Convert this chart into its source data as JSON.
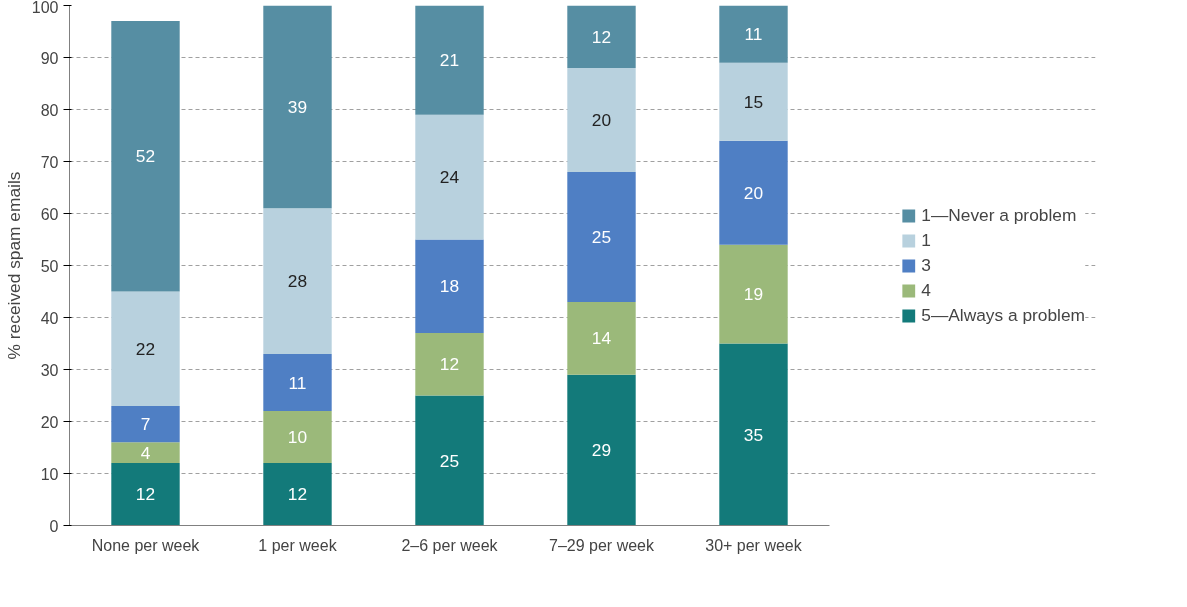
{
  "chart_data": {
    "type": "bar",
    "stacked": true,
    "ylabel": "% received spam emails",
    "categories": [
      "None per week",
      "1 per week",
      "2–6 per week",
      "7–29 per week",
      "30+ per week"
    ],
    "series": [
      {
        "name": "5—Always a problem",
        "color": "#137a7a",
        "values": [
          12,
          12,
          25,
          29,
          35
        ]
      },
      {
        "name": "4",
        "color": "#9bb97a",
        "values": [
          4,
          10,
          12,
          14,
          19
        ]
      },
      {
        "name": "3",
        "color": "#4f7fc4",
        "values": [
          7,
          11,
          18,
          25,
          20
        ]
      },
      {
        "name": "1",
        "color": "#b8d1de",
        "values": [
          22,
          28,
          24,
          20,
          15
        ]
      },
      {
        "name": "1—Never a problem",
        "color": "#568ea3",
        "values": [
          52,
          39,
          21,
          12,
          11
        ]
      }
    ],
    "ylim": [
      0,
      100
    ],
    "yticks": [
      0,
      10,
      20,
      30,
      40,
      50,
      60,
      70,
      80,
      90,
      100
    ],
    "grid": "y",
    "legend": "right",
    "data_labels": true
  }
}
